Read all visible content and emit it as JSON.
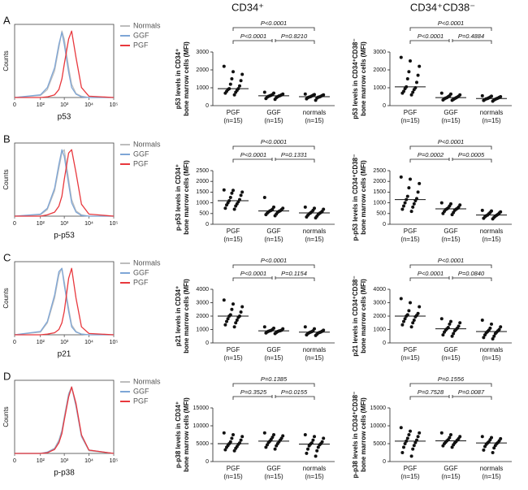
{
  "column_titles": [
    "CD34⁺",
    "CD34⁺CD38⁻"
  ],
  "panel_labels": [
    "A",
    "B",
    "C",
    "D"
  ],
  "chart_data": [
    {
      "type": "line",
      "xlabel": "p53",
      "ylabel": "Counts",
      "legend": "right",
      "x": [
        0,
        100,
        200,
        400,
        600,
        800,
        1000,
        1500,
        2000,
        3000,
        5000,
        10000,
        100000
      ],
      "xlim": [
        0,
        100000
      ],
      "xticks": [
        0,
        {
          "value": 100,
          "label": "10²"
        },
        {
          "value": 1000,
          "label": "10³"
        },
        {
          "value": 10000,
          "label": "10⁴"
        },
        {
          "value": 100000,
          "label": "10⁵"
        }
      ],
      "ylim": [
        0,
        110
      ],
      "series": [
        {
          "name": "Normals",
          "color": "#bdbdbd",
          "values": [
            0,
            3,
            12,
            40,
            75,
            100,
            88,
            45,
            20,
            6,
            2,
            0,
            0
          ]
        },
        {
          "name": "GGF",
          "color": "#7ea6d6",
          "values": [
            0,
            4,
            15,
            45,
            80,
            98,
            80,
            38,
            15,
            5,
            1,
            0,
            0
          ]
        },
        {
          "name": "PGF",
          "color": "#e8383d",
          "values": [
            0,
            0,
            1,
            4,
            12,
            28,
            50,
            88,
            100,
            60,
            15,
            2,
            0
          ]
        }
      ]
    },
    {
      "type": "dotplot",
      "ylabel": [
        "p53 levels in CD34⁺",
        "bone marrow cells  (MFI)"
      ],
      "color": "#111111",
      "categories": [
        "PGF",
        "GGF",
        "normals"
      ],
      "n_labels": [
        "(n=15)",
        "(n=15)",
        "(n=15)"
      ],
      "ylim": [
        0,
        3000
      ],
      "yticks": [
        0,
        1000,
        2000,
        3000
      ],
      "p_values": [
        "P<0.0001",
        "P<0.0001",
        "P=0.8210"
      ],
      "values": [
        [
          2200,
          1900,
          1750,
          1500,
          1400,
          1200,
          1100,
          950,
          950,
          900,
          850,
          800,
          750,
          700,
          600
        ],
        [
          750,
          700,
          650,
          620,
          600,
          580,
          560,
          550,
          540,
          520,
          500,
          480,
          450,
          400,
          350
        ],
        [
          650,
          620,
          600,
          580,
          560,
          540,
          520,
          500,
          490,
          480,
          470,
          450,
          420,
          380,
          300
        ]
      ],
      "medians": [
        950,
        550,
        500
      ]
    },
    {
      "type": "dotplot",
      "ylabel": [
        "p53 levels in CD34⁺CD38⁻",
        "bone marrow cells  (MFI)"
      ],
      "color": "#111111",
      "categories": [
        "PGF",
        "GGF",
        "normals"
      ],
      "n_labels": [
        "(n=15)",
        "(n=15)",
        "(n=15)"
      ],
      "ylim": [
        0,
        3000
      ],
      "yticks": [
        0,
        1000,
        2000,
        3000
      ],
      "p_values": [
        "P<0.0001",
        "P<0.0001",
        "P=0.4884"
      ],
      "values": [
        [
          2700,
          2500,
          2200,
          1900,
          1700,
          1500,
          1300,
          1050,
          1000,
          950,
          900,
          800,
          750,
          700,
          600
        ],
        [
          700,
          650,
          600,
          550,
          520,
          500,
          480,
          450,
          440,
          420,
          400,
          380,
          350,
          320,
          300
        ],
        [
          550,
          530,
          500,
          480,
          460,
          440,
          420,
          400,
          390,
          380,
          360,
          340,
          320,
          290,
          250
        ]
      ],
      "medians": [
        1050,
        450,
        400
      ]
    },
    {
      "type": "line",
      "xlabel": "p-p53",
      "ylabel": "Counts",
      "legend": "right",
      "x": [
        0,
        100,
        200,
        400,
        600,
        800,
        1000,
        1500,
        2000,
        3000,
        5000,
        10000,
        100000
      ],
      "xlim": [
        0,
        100000
      ],
      "xticks": [
        0,
        {
          "value": 100,
          "label": "10²"
        },
        {
          "value": 1000,
          "label": "10³"
        },
        {
          "value": 10000,
          "label": "10⁴"
        },
        {
          "value": 100000,
          "label": "10⁵"
        }
      ],
      "ylim": [
        0,
        110
      ],
      "series": [
        {
          "name": "Normals",
          "color": "#bdbdbd",
          "values": [
            0,
            2,
            10,
            38,
            72,
            95,
            100,
            55,
            25,
            8,
            2,
            0,
            0
          ]
        },
        {
          "name": "GGF",
          "color": "#7ea6d6",
          "values": [
            0,
            3,
            12,
            42,
            78,
            100,
            90,
            48,
            20,
            6,
            1,
            0,
            0
          ]
        },
        {
          "name": "PGF",
          "color": "#e8383d",
          "values": [
            0,
            0,
            2,
            6,
            15,
            30,
            55,
            95,
            100,
            65,
            18,
            3,
            0
          ]
        }
      ]
    },
    {
      "type": "dotplot",
      "ylabel": [
        "p-p53 levels in CD34⁺",
        "bone marrow cells  (MFI)"
      ],
      "color": "#111111",
      "categories": [
        "PGF",
        "GGF",
        "normals"
      ],
      "n_labels": [
        "(n=15)",
        "(n=15)",
        "(n=15)"
      ],
      "ylim": [
        0,
        2500
      ],
      "yticks": [
        0,
        500,
        1000,
        1500,
        2000,
        2500
      ],
      "p_values": [
        "P<0.0001",
        "P<0.0001",
        "P=0.1331"
      ],
      "values": [
        [
          1600,
          1580,
          1500,
          1450,
          1350,
          1250,
          1150,
          1100,
          1050,
          1000,
          950,
          900,
          850,
          750,
          700
        ],
        [
          1250,
          800,
          750,
          700,
          680,
          650,
          630,
          620,
          600,
          580,
          560,
          520,
          480,
          450,
          400
        ],
        [
          800,
          750,
          700,
          650,
          600,
          580,
          550,
          530,
          510,
          490,
          460,
          420,
          380,
          340,
          300
        ]
      ],
      "medians": [
        1100,
        620,
        530
      ]
    },
    {
      "type": "dotplot",
      "ylabel": [
        "p-p53 levels in CD34⁺CD38⁻",
        "bone marrow cells  (MFI)"
      ],
      "color": "#111111",
      "categories": [
        "PGF",
        "GGF",
        "normals"
      ],
      "n_labels": [
        "(n=15)",
        "(n=15)",
        "(n=15)"
      ],
      "ylim": [
        0,
        2500
      ],
      "yticks": [
        0,
        500,
        1000,
        1500,
        2000,
        2500
      ],
      "p_values": [
        "P<0.0001",
        "P=0.0002",
        "P=0.0005"
      ],
      "values": [
        [
          2200,
          2100,
          1900,
          1700,
          1500,
          1300,
          1200,
          1150,
          1100,
          1000,
          950,
          850,
          800,
          700,
          600
        ],
        [
          1000,
          950,
          900,
          850,
          800,
          760,
          740,
          720,
          700,
          680,
          650,
          600,
          550,
          500,
          450
        ],
        [
          650,
          620,
          580,
          550,
          520,
          490,
          460,
          430,
          420,
          400,
          380,
          350,
          320,
          280,
          250
        ]
      ],
      "medians": [
        1150,
        720,
        430
      ]
    },
    {
      "type": "line",
      "xlabel": "p21",
      "ylabel": "Counts",
      "legend": "right",
      "x": [
        0,
        100,
        200,
        400,
        600,
        800,
        1000,
        1500,
        2000,
        3000,
        5000,
        10000,
        100000
      ],
      "xlim": [
        0,
        100000
      ],
      "xticks": [
        0,
        {
          "value": 100,
          "label": "10²"
        },
        {
          "value": 1000,
          "label": "10³"
        },
        {
          "value": 10000,
          "label": "10⁴"
        },
        {
          "value": 100000,
          "label": "10⁵"
        }
      ],
      "ylim": [
        0,
        110
      ],
      "series": [
        {
          "name": "Normals",
          "color": "#bdbdbd",
          "values": [
            0,
            4,
            18,
            55,
            90,
            100,
            80,
            40,
            15,
            5,
            1,
            0,
            0
          ]
        },
        {
          "name": "GGF",
          "color": "#7ea6d6",
          "values": [
            0,
            5,
            20,
            60,
            95,
            100,
            75,
            35,
            12,
            4,
            1,
            0,
            0
          ]
        },
        {
          "name": "PGF",
          "color": "#e8383d",
          "values": [
            0,
            0,
            1,
            3,
            8,
            18,
            35,
            85,
            100,
            55,
            12,
            2,
            0
          ]
        }
      ]
    },
    {
      "type": "dotplot",
      "ylabel": [
        "p21 levels in CD34⁺",
        "bone marrow cells  (MFI)"
      ],
      "color": "#111111",
      "categories": [
        "PGF",
        "GGF",
        "normals"
      ],
      "n_labels": [
        "(n=15)",
        "(n=15)",
        "(n=15)"
      ],
      "ylim": [
        0,
        4000
      ],
      "yticks": [
        0,
        1000,
        2000,
        3000,
        4000
      ],
      "p_values": [
        "P<0.0001",
        "P<0.0001",
        "P=0.1154"
      ],
      "values": [
        [
          3200,
          2900,
          2700,
          2500,
          2300,
          2100,
          2000,
          2000,
          1900,
          1800,
          1700,
          1600,
          1500,
          1350,
          1200
        ],
        [
          1200,
          1100,
          1050,
          1000,
          950,
          930,
          910,
          900,
          890,
          870,
          850,
          820,
          780,
          740,
          700
        ],
        [
          1200,
          1050,
          950,
          900,
          870,
          840,
          820,
          800,
          780,
          760,
          740,
          700,
          650,
          600,
          550
        ]
      ],
      "medians": [
        2000,
        900,
        800
      ]
    },
    {
      "type": "dotplot",
      "ylabel": [
        "p21 levels in CD34⁺CD38⁻",
        "bone marrow cells  (MFI)"
      ],
      "color": "#111111",
      "categories": [
        "PGF",
        "GGF",
        "normals"
      ],
      "n_labels": [
        "(n=15)",
        "(n=15)",
        "(n=15)"
      ],
      "ylim": [
        0,
        4000
      ],
      "yticks": [
        0,
        1000,
        2000,
        3000,
        4000
      ],
      "p_values": [
        "P<0.0001",
        "P<0.0001",
        "P=0.0840"
      ],
      "values": [
        [
          3300,
          3000,
          2700,
          2400,
          2200,
          2100,
          2050,
          2000,
          1950,
          1800,
          1700,
          1600,
          1500,
          1350,
          1200
        ],
        [
          1800,
          1600,
          1500,
          1400,
          1250,
          1150,
          1100,
          1050,
          1000,
          950,
          900,
          800,
          700,
          600,
          500
        ],
        [
          1700,
          1400,
          1200,
          1100,
          1000,
          950,
          900,
          850,
          800,
          750,
          700,
          600,
          500,
          400,
          300
        ]
      ],
      "medians": [
        2000,
        1050,
        850
      ]
    },
    {
      "type": "line",
      "xlabel": "p-p38",
      "ylabel": "Counts",
      "legend": "right",
      "x": [
        0,
        100,
        200,
        400,
        600,
        800,
        1000,
        1500,
        2000,
        3000,
        5000,
        10000,
        100000
      ],
      "xlim": [
        0,
        100000
      ],
      "xticks": [
        0,
        {
          "value": 100,
          "label": "10²"
        },
        {
          "value": 1000,
          "label": "10³"
        },
        {
          "value": 10000,
          "label": "10⁴"
        },
        {
          "value": 100000,
          "label": "10⁵"
        }
      ],
      "ylim": [
        0,
        110
      ],
      "series": [
        {
          "name": "Normals",
          "color": "#bdbdbd",
          "values": [
            0,
            0,
            2,
            8,
            20,
            35,
            55,
            90,
            100,
            70,
            25,
            4,
            0
          ]
        },
        {
          "name": "GGF",
          "color": "#7ea6d6",
          "values": [
            0,
            0,
            2,
            7,
            18,
            33,
            52,
            88,
            100,
            72,
            26,
            5,
            0
          ]
        },
        {
          "name": "PGF",
          "color": "#e8383d",
          "values": [
            0,
            0,
            1,
            6,
            16,
            30,
            50,
            85,
            100,
            75,
            28,
            5,
            0
          ]
        }
      ]
    },
    {
      "type": "dotplot",
      "ylabel": [
        "p-p38 levels in CD34⁺",
        "bone marrow cells  (MFI)"
      ],
      "color": "#111111",
      "categories": [
        "PGF",
        "GGF",
        "normals"
      ],
      "n_labels": [
        "(n=15)",
        "(n=15)",
        "(n=15)"
      ],
      "ylim": [
        0,
        15000
      ],
      "yticks": [
        0,
        5000,
        10000,
        15000
      ],
      "p_values": [
        "P=0.1385",
        "P=0.3525",
        "P=0.0155"
      ],
      "values": [
        [
          8000,
          7500,
          7000,
          6500,
          6000,
          5500,
          5200,
          5000,
          4800,
          4500,
          4200,
          4000,
          3700,
          3300,
          3000
        ],
        [
          8000,
          7500,
          7200,
          6800,
          6500,
          6200,
          6000,
          5700,
          5500,
          5300,
          5000,
          4700,
          4400,
          4000,
          3500
        ],
        [
          7500,
          7000,
          6500,
          6000,
          5500,
          5200,
          5000,
          4900,
          4700,
          4400,
          4000,
          3500,
          3000,
          2300,
          1500
        ]
      ],
      "medians": [
        5000,
        5700,
        4900
      ]
    },
    {
      "type": "dotplot",
      "ylabel": [
        "p-p38 levels in CD34⁺CD38⁻",
        "bone marrow cells  (MFI)"
      ],
      "color": "#111111",
      "categories": [
        "PGF",
        "GGF",
        "normals"
      ],
      "n_labels": [
        "(n=15)",
        "(n=15)",
        "(n=15)"
      ],
      "ylim": [
        0,
        15000
      ],
      "yticks": [
        0,
        5000,
        10000,
        15000
      ],
      "p_values": [
        "P=0.1556",
        "P=0.7528",
        "P=0.0087"
      ],
      "values": [
        [
          9500,
          8500,
          8000,
          7500,
          7000,
          6500,
          6000,
          5700,
          5300,
          5000,
          4500,
          4000,
          3500,
          2500,
          1500
        ],
        [
          8000,
          7500,
          7000,
          6700,
          6400,
          6100,
          6000,
          5800,
          5600,
          5400,
          5200,
          5000,
          4700,
          4400,
          4000
        ],
        [
          7000,
          6700,
          6400,
          6100,
          5800,
          5500,
          5300,
          5200,
          5000,
          4800,
          4500,
          4200,
          3800,
          3200,
          2500
        ]
      ],
      "medians": [
        5700,
        5800,
        5200
      ]
    }
  ]
}
